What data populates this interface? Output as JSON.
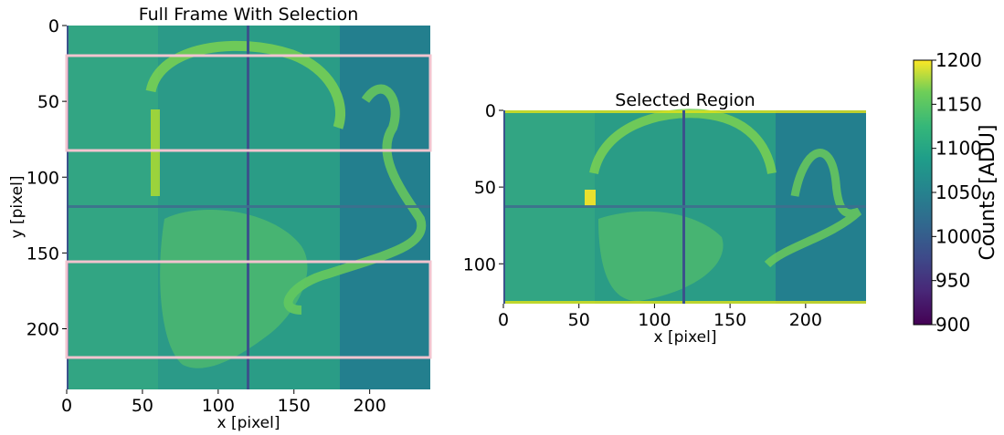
{
  "chart_data": [
    {
      "type": "heatmap",
      "title": "Full Frame With Selection",
      "xlabel": "x [pixel]",
      "ylabel": "y [pixel]",
      "xlim": [
        0,
        240
      ],
      "ylim": [
        240,
        0
      ],
      "xticks": [
        0,
        50,
        100,
        150,
        200
      ],
      "yticks": [
        0,
        50,
        100,
        150,
        200
      ],
      "colormap": "viridis",
      "clim": [
        900,
        1200
      ],
      "selection_regions": [
        {
          "x": [
            0,
            240
          ],
          "y": [
            20,
            83
          ]
        },
        {
          "x": [
            0,
            240
          ],
          "y": [
            157,
            220
          ]
        }
      ],
      "selection_color": "#f2c4cf"
    },
    {
      "type": "heatmap",
      "title": "Selected Region",
      "xlabel": "x [pixel]",
      "ylabel": "",
      "xlim": [
        0,
        240
      ],
      "ylim": [
        126,
        0
      ],
      "xticks": [
        0,
        50,
        100,
        150,
        200
      ],
      "yticks": [
        0,
        50,
        100
      ],
      "colormap": "viridis",
      "clim": [
        900,
        1200
      ]
    }
  ],
  "colorbar": {
    "label": "Counts [ADU]",
    "min": 900,
    "max": 1200,
    "ticks": [
      900,
      950,
      1000,
      1050,
      1100,
      1150,
      1200
    ]
  }
}
